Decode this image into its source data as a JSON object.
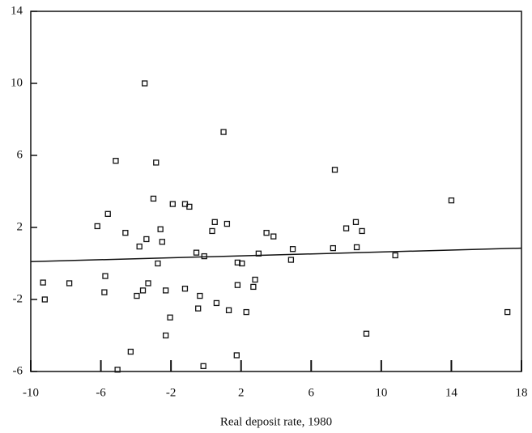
{
  "chart_data": {
    "type": "scatter",
    "x_label": "Real deposit rate, 1980",
    "xlim": [
      -10,
      18
    ],
    "xticks": [
      -10,
      -6,
      -2,
      2,
      6,
      10,
      14,
      18
    ],
    "ylim": [
      -6,
      14
    ],
    "yticks": [
      -6,
      -2,
      2,
      6,
      10,
      14
    ],
    "color": "#111111",
    "x": [
      -9.3,
      -9.2,
      -7.8,
      -5.75,
      -5.8,
      -5.6,
      -6.2,
      -5.15,
      -5.05,
      -4.6,
      -4.3,
      -3.95,
      -3.8,
      -3.6,
      -3.4,
      -3.5,
      -3.3,
      -3.0,
      -2.85,
      -2.75,
      -2.6,
      -2.5,
      -2.3,
      -2.3,
      -2.05,
      -1.9,
      -1.2,
      -0.95,
      -1.2,
      -0.55,
      -0.35,
      -0.45,
      -0.1,
      -0.15,
      0.35,
      0.5,
      0.6,
      1.0,
      1.2,
      1.3,
      1.75,
      1.8,
      1.8,
      2.05,
      2.3,
      2.7,
      2.8,
      3.0,
      3.45,
      3.85,
      4.85,
      4.95,
      7.25,
      7.35,
      8.0,
      8.55,
      8.6,
      8.9,
      9.15,
      10.8,
      14.0,
      17.2
    ],
    "y": [
      -1.06,
      -2.0,
      -1.1,
      -0.7,
      -1.6,
      2.75,
      2.07,
      5.7,
      -5.9,
      1.7,
      -4.9,
      -1.8,
      0.94,
      -1.5,
      1.35,
      10.0,
      -1.1,
      3.6,
      5.6,
      0.0,
      1.9,
      1.2,
      -1.5,
      -4.0,
      -3.0,
      3.3,
      3.3,
      3.15,
      -1.4,
      0.6,
      -1.8,
      -2.5,
      0.4,
      -5.7,
      1.8,
      2.3,
      -2.2,
      7.3,
      2.2,
      -2.6,
      -5.1,
      -1.2,
      0.05,
      0.0,
      -2.7,
      -1.3,
      -0.9,
      0.55,
      1.7,
      1.5,
      0.2,
      0.8,
      0.85,
      5.2,
      1.95,
      2.3,
      0.9,
      1.8,
      -3.9,
      0.45,
      3.5,
      -2.7
    ],
    "fit_line": {
      "x": [
        -10,
        18
      ],
      "y": [
        0.1,
        0.85
      ]
    }
  }
}
